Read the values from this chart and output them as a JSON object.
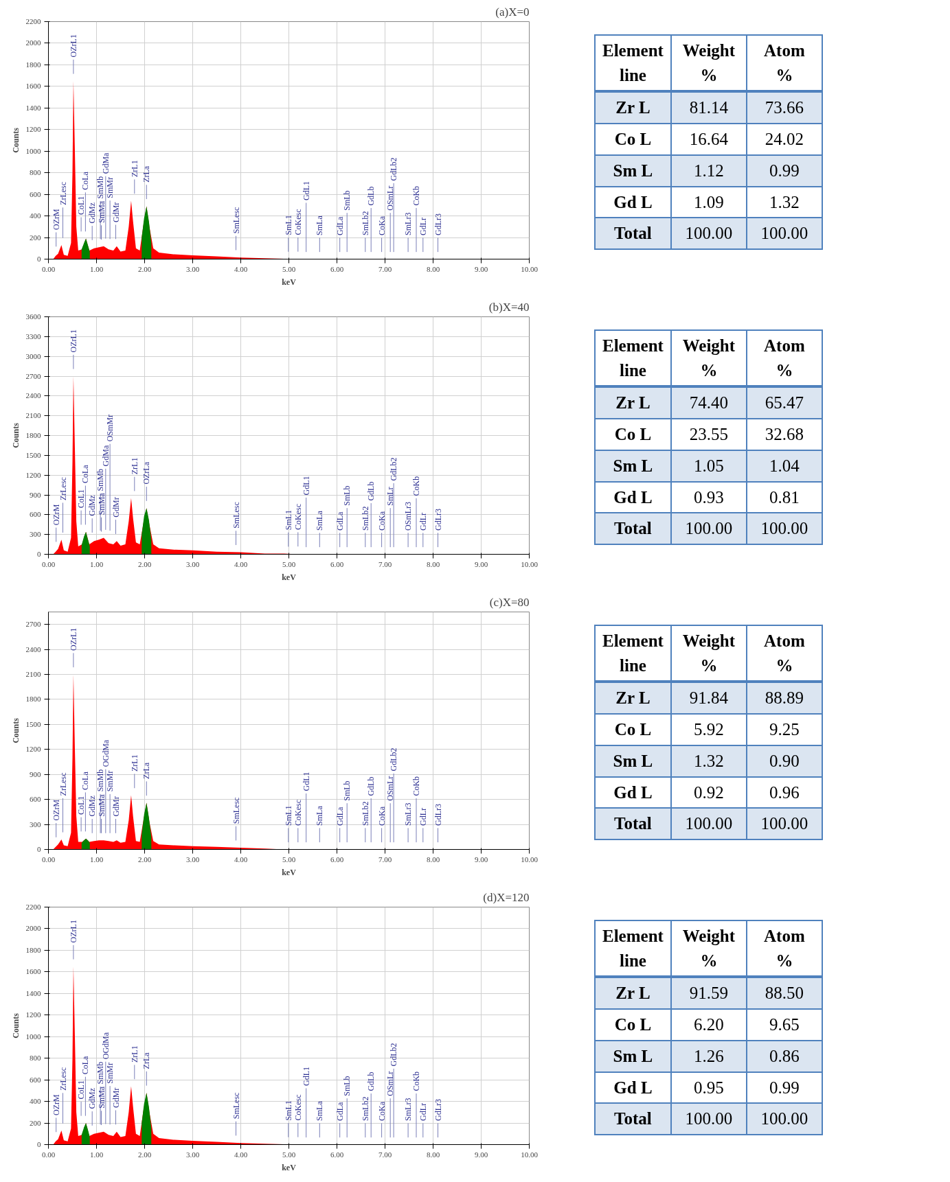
{
  "chart_data": [
    {
      "type": "area",
      "title": "(a)X=0",
      "xlabel": "keV",
      "ylabel": "Counts",
      "xlim": [
        0,
        10
      ],
      "ylim": [
        0,
        2200
      ],
      "grid": true,
      "xticks": [
        {
          "value": 0,
          "label": "0.00"
        },
        {
          "value": 1,
          "label": "1.00"
        },
        {
          "value": 2,
          "label": "2.00"
        },
        {
          "value": 3,
          "label": "3.00"
        },
        {
          "value": 4,
          "label": "4.00"
        },
        {
          "value": 5,
          "label": "5.00"
        },
        {
          "value": 6,
          "label": "6.00"
        },
        {
          "value": 7,
          "label": "7.00"
        },
        {
          "value": 8,
          "label": "8.00"
        },
        {
          "value": 9,
          "label": "9.00"
        },
        {
          "value": 10,
          "label": "10.00"
        }
      ],
      "yticks": [
        0,
        200,
        400,
        600,
        800,
        1000,
        1200,
        1400,
        1600,
        1800,
        2000,
        2200
      ],
      "series": [
        {
          "color": "#ff0000",
          "x": [
            0.1,
            0.15,
            0.2,
            0.27,
            0.32,
            0.4,
            0.47,
            0.5,
            0.52,
            0.55,
            0.58,
            0.62,
            0.7,
            0.78,
            0.85,
            0.95,
            1.05,
            1.15,
            1.25,
            1.35,
            1.42,
            1.5,
            1.6,
            1.67,
            1.72,
            1.76,
            1.82,
            1.9,
            1.97,
            2.04,
            2.1,
            2.18,
            2.3,
            2.6,
            3.0,
            3.5,
            4.0,
            4.5,
            4.9,
            5.2,
            10
          ],
          "values": [
            0,
            30,
            50,
            130,
            40,
            30,
            150,
            800,
            1650,
            1000,
            300,
            80,
            90,
            190,
            80,
            100,
            110,
            120,
            90,
            80,
            120,
            70,
            80,
            300,
            540,
            350,
            100,
            80,
            300,
            490,
            300,
            100,
            60,
            45,
            35,
            25,
            15,
            8,
            3,
            0,
            0
          ]
        },
        {
          "color": "#008000",
          "x": [
            0.69,
            0.74,
            0.78,
            0.82,
            0.86,
            1.4,
            1.94,
            1.99,
            2.04,
            2.09,
            2.14
          ],
          "values": [
            90,
            150,
            190,
            130,
            70,
            null,
            200,
            380,
            490,
            350,
            150
          ]
        }
      ],
      "ref_lines": [
        {
          "axis": "x",
          "label": "OZrM",
          "value": 0.16
        },
        {
          "axis": "x",
          "label": "ZrLesc",
          "value": 0.3
        },
        {
          "axis": "x",
          "label": "OZrL1",
          "value": 0.52
        },
        {
          "axis": "x",
          "label": "CoL1",
          "value": 0.68
        },
        {
          "axis": "x",
          "label": "CoLa",
          "value": 0.77
        },
        {
          "axis": "x",
          "label": "GdMz",
          "value": 0.91
        },
        {
          "axis": "x",
          "label": "SmMb",
          "value": 1.08
        },
        {
          "axis": "x",
          "label": "SmMa",
          "value": 1.1
        },
        {
          "axis": "x",
          "label": "GdMa",
          "value": 1.19
        },
        {
          "axis": "x",
          "label": "SmMr",
          "value": 1.28
        },
        {
          "axis": "x",
          "label": "GdMr",
          "value": 1.4
        },
        {
          "axis": "x",
          "label": "ZrL1",
          "value": 1.79
        },
        {
          "axis": "x",
          "label": "ZrLa",
          "value": 2.04
        },
        {
          "axis": "x",
          "label": "SmLesc",
          "value": 3.9
        },
        {
          "axis": "x",
          "label": "SmL1",
          "value": 4.99
        },
        {
          "axis": "x",
          "label": "CoKesc",
          "value": 5.19
        },
        {
          "axis": "x",
          "label": "GdL1",
          "value": 5.36
        },
        {
          "axis": "x",
          "label": "SmLa",
          "value": 5.64
        },
        {
          "axis": "x",
          "label": "GdLa",
          "value": 6.06
        },
        {
          "axis": "x",
          "label": "SmLb",
          "value": 6.21
        },
        {
          "axis": "x",
          "label": "SmLb2",
          "value": 6.59
        },
        {
          "axis": "x",
          "label": "GdLb",
          "value": 6.71
        },
        {
          "axis": "x",
          "label": "CoKa",
          "value": 6.93
        },
        {
          "axis": "x",
          "label": "OSmLr",
          "value": 7.11
        },
        {
          "axis": "x",
          "label": "GdLb2",
          "value": 7.18
        },
        {
          "axis": "x",
          "label": "SmLr3",
          "value": 7.48
        },
        {
          "axis": "x",
          "label": "CoKb",
          "value": 7.65
        },
        {
          "axis": "x",
          "label": "GdLr",
          "value": 7.79
        },
        {
          "axis": "x",
          "label": "GdLr3",
          "value": 8.1
        }
      ]
    },
    {
      "type": "other",
      "categories": [
        "Element line",
        "Weight %",
        "Atom %"
      ],
      "y_categories": [
        "Zr L",
        "Co L",
        "Sm L",
        "Gd L",
        "Total"
      ],
      "cell_labels": [
        [
          "81.14",
          "73.66"
        ],
        [
          "16.64",
          "24.02"
        ],
        [
          "1.12",
          "0.99"
        ],
        [
          "1.09",
          "1.32"
        ],
        [
          "100.00",
          "100.00"
        ]
      ]
    },
    {
      "type": "area",
      "title": "(b)X=40",
      "xlabel": "keV",
      "ylabel": "Counts",
      "xlim": [
        0,
        10
      ],
      "ylim": [
        0,
        3600
      ],
      "grid": true,
      "xticks": [
        {
          "value": 0,
          "label": "0.00"
        },
        {
          "value": 1,
          "label": "1.00"
        },
        {
          "value": 2,
          "label": "2.00"
        },
        {
          "value": 3,
          "label": "3.00"
        },
        {
          "value": 4,
          "label": "4.00"
        },
        {
          "value": 5,
          "label": "5.00"
        },
        {
          "value": 6,
          "label": "6.00"
        },
        {
          "value": 7,
          "label": "7.00"
        },
        {
          "value": 8,
          "label": "8.00"
        },
        {
          "value": 9,
          "label": "9.00"
        },
        {
          "value": 10,
          "label": "10.00"
        }
      ],
      "yticks": [
        0,
        300,
        600,
        900,
        1200,
        1500,
        1800,
        2100,
        2400,
        2700,
        3000,
        3300,
        3600
      ],
      "series": [
        {
          "color": "#ff0000",
          "x": [
            0.1,
            0.15,
            0.2,
            0.27,
            0.32,
            0.4,
            0.47,
            0.5,
            0.52,
            0.55,
            0.58,
            0.62,
            0.7,
            0.78,
            0.85,
            0.95,
            1.05,
            1.15,
            1.25,
            1.35,
            1.42,
            1.5,
            1.6,
            1.67,
            1.72,
            1.76,
            1.82,
            1.9,
            1.97,
            2.04,
            2.1,
            2.18,
            2.3,
            2.6,
            3.0,
            3.5,
            4.0,
            4.5,
            4.9,
            5.2,
            10
          ],
          "values": [
            0,
            40,
            80,
            220,
            60,
            40,
            250,
            1400,
            2700,
            1600,
            500,
            120,
            150,
            340,
            150,
            200,
            220,
            250,
            170,
            150,
            200,
            130,
            150,
            500,
            850,
            550,
            180,
            150,
            450,
            700,
            450,
            150,
            90,
            70,
            60,
            40,
            30,
            10,
            10,
            0,
            0
          ]
        },
        {
          "color": "#008000",
          "x": [
            0.69,
            0.74,
            0.78,
            0.82,
            0.86,
            1.4,
            1.94,
            1.99,
            2.04,
            2.09,
            2.14
          ],
          "values": [
            140,
            270,
            340,
            230,
            120,
            null,
            300,
            580,
            700,
            520,
            220
          ]
        }
      ],
      "ref_lines": [
        {
          "axis": "x",
          "label": "OZrM",
          "value": 0.16
        },
        {
          "axis": "x",
          "label": "ZrLesc",
          "value": 0.3
        },
        {
          "axis": "x",
          "label": "OZrL1",
          "value": 0.52
        },
        {
          "axis": "x",
          "label": "CoL1",
          "value": 0.68
        },
        {
          "axis": "x",
          "label": "CoLa",
          "value": 0.77
        },
        {
          "axis": "x",
          "label": "GdMz",
          "value": 0.91
        },
        {
          "axis": "x",
          "label": "SmMb",
          "value": 1.08
        },
        {
          "axis": "x",
          "label": "SmMa",
          "value": 1.1
        },
        {
          "axis": "x",
          "label": "GdMa",
          "value": 1.19
        },
        {
          "axis": "x",
          "label": "OSmMr",
          "value": 1.28
        },
        {
          "axis": "x",
          "label": "GdMr",
          "value": 1.4
        },
        {
          "axis": "x",
          "label": "ZrL1",
          "value": 1.79
        },
        {
          "axis": "x",
          "label": "OZrLa",
          "value": 2.04
        },
        {
          "axis": "x",
          "label": "SmLesc",
          "value": 3.9
        },
        {
          "axis": "x",
          "label": "SmL1",
          "value": 4.99
        },
        {
          "axis": "x",
          "label": "CoKesc",
          "value": 5.19
        },
        {
          "axis": "x",
          "label": "GdL1",
          "value": 5.36
        },
        {
          "axis": "x",
          "label": "SmLa",
          "value": 5.64
        },
        {
          "axis": "x",
          "label": "GdLa",
          "value": 6.06
        },
        {
          "axis": "x",
          "label": "SmLb",
          "value": 6.21
        },
        {
          "axis": "x",
          "label": "SmLb2",
          "value": 6.59
        },
        {
          "axis": "x",
          "label": "GdLb",
          "value": 6.71
        },
        {
          "axis": "x",
          "label": "CoKa",
          "value": 6.93
        },
        {
          "axis": "x",
          "label": "SmLr",
          "value": 7.11
        },
        {
          "axis": "x",
          "label": "GdLb2",
          "value": 7.18
        },
        {
          "axis": "x",
          "label": "OSmLr3",
          "value": 7.48
        },
        {
          "axis": "x",
          "label": "CoKb",
          "value": 7.65
        },
        {
          "axis": "x",
          "label": "GdLr",
          "value": 7.79
        },
        {
          "axis": "x",
          "label": "GdLr3",
          "value": 8.1
        }
      ]
    },
    {
      "type": "other",
      "categories": [
        "Element line",
        "Weight %",
        "Atom %"
      ],
      "y_categories": [
        "Zr L",
        "Co L",
        "Sm L",
        "Gd L",
        "Total"
      ],
      "cell_labels": [
        [
          "74.40",
          "65.47"
        ],
        [
          "23.55",
          "32.68"
        ],
        [
          "1.05",
          "1.04"
        ],
        [
          "0.93",
          "0.81"
        ],
        [
          "100.00",
          "100.00"
        ]
      ]
    },
    {
      "type": "area",
      "title": "(c)X=80",
      "xlabel": "keV",
      "ylabel": "Counts",
      "xlim": [
        0,
        10
      ],
      "ylim": [
        0,
        2850
      ],
      "grid": true,
      "xticks": [
        {
          "value": 0,
          "label": "0.00"
        },
        {
          "value": 1,
          "label": "1.00"
        },
        {
          "value": 2,
          "label": "2.00"
        },
        {
          "value": 3,
          "label": "3.00"
        },
        {
          "value": 4,
          "label": "4.00"
        },
        {
          "value": 5,
          "label": "5.00"
        },
        {
          "value": 6,
          "label": "6.00"
        },
        {
          "value": 7,
          "label": "7.00"
        },
        {
          "value": 8,
          "label": "8.00"
        },
        {
          "value": 9,
          "label": "9.00"
        },
        {
          "value": 10,
          "label": "10.00"
        }
      ],
      "yticks": [
        0,
        300,
        600,
        900,
        1200,
        1500,
        1800,
        2100,
        2400,
        2700
      ],
      "series": [
        {
          "color": "#ff0000",
          "x": [
            0.1,
            0.15,
            0.2,
            0.27,
            0.32,
            0.4,
            0.47,
            0.5,
            0.52,
            0.55,
            0.58,
            0.62,
            0.7,
            0.78,
            0.85,
            0.95,
            1.05,
            1.15,
            1.25,
            1.35,
            1.42,
            1.5,
            1.6,
            1.67,
            1.72,
            1.76,
            1.82,
            1.9,
            1.97,
            2.04,
            2.1,
            2.18,
            2.3,
            2.6,
            3.0,
            3.5,
            4.0,
            4.5,
            4.9,
            5.2,
            10
          ],
          "values": [
            0,
            30,
            60,
            120,
            50,
            40,
            200,
            1100,
            2100,
            1200,
            400,
            90,
            90,
            130,
            90,
            100,
            110,
            110,
            100,
            90,
            110,
            80,
            90,
            350,
            650,
            400,
            100,
            90,
            330,
            560,
            330,
            100,
            60,
            50,
            40,
            30,
            20,
            10,
            0,
            0,
            0
          ]
        },
        {
          "color": "#008000",
          "x": [
            0.69,
            0.74,
            0.78,
            0.82,
            0.86,
            1.4,
            1.94,
            1.99,
            2.04,
            2.09,
            2.14
          ],
          "values": [
            80,
            110,
            130,
            110,
            80,
            null,
            180,
            420,
            560,
            380,
            150
          ]
        }
      ],
      "ref_lines": [
        {
          "axis": "x",
          "label": "OZrM",
          "value": 0.16
        },
        {
          "axis": "x",
          "label": "ZrLesc",
          "value": 0.3
        },
        {
          "axis": "x",
          "label": "OZrL1",
          "value": 0.52
        },
        {
          "axis": "x",
          "label": "CoL1",
          "value": 0.68
        },
        {
          "axis": "x",
          "label": "CoLa",
          "value": 0.77
        },
        {
          "axis": "x",
          "label": "GdMz",
          "value": 0.91
        },
        {
          "axis": "x",
          "label": "SmMb",
          "value": 1.08
        },
        {
          "axis": "x",
          "label": "SmMa",
          "value": 1.1
        },
        {
          "axis": "x",
          "label": "OGdMa",
          "value": 1.19
        },
        {
          "axis": "x",
          "label": "SmMr",
          "value": 1.28
        },
        {
          "axis": "x",
          "label": "GdMr",
          "value": 1.4
        },
        {
          "axis": "x",
          "label": "ZrL1",
          "value": 1.79
        },
        {
          "axis": "x",
          "label": "ZrLa",
          "value": 2.04
        },
        {
          "axis": "x",
          "label": "SmLesc",
          "value": 3.9
        },
        {
          "axis": "x",
          "label": "SmL1",
          "value": 4.99
        },
        {
          "axis": "x",
          "label": "CoKesc",
          "value": 5.19
        },
        {
          "axis": "x",
          "label": "GdL1",
          "value": 5.36
        },
        {
          "axis": "x",
          "label": "SmLa",
          "value": 5.64
        },
        {
          "axis": "x",
          "label": "GdLa",
          "value": 6.06
        },
        {
          "axis": "x",
          "label": "SmLb",
          "value": 6.21
        },
        {
          "axis": "x",
          "label": "SmLb2",
          "value": 6.59
        },
        {
          "axis": "x",
          "label": "GdLb",
          "value": 6.71
        },
        {
          "axis": "x",
          "label": "CoKa",
          "value": 6.93
        },
        {
          "axis": "x",
          "label": "OSmLr",
          "value": 7.11
        },
        {
          "axis": "x",
          "label": "GdLb2",
          "value": 7.18
        },
        {
          "axis": "x",
          "label": "SmLr3",
          "value": 7.48
        },
        {
          "axis": "x",
          "label": "CoKb",
          "value": 7.65
        },
        {
          "axis": "x",
          "label": "GdLr",
          "value": 7.79
        },
        {
          "axis": "x",
          "label": "GdLr3",
          "value": 8.1
        }
      ]
    },
    {
      "type": "other",
      "categories": [
        "Element line",
        "Weight %",
        "Atom %"
      ],
      "y_categories": [
        "Zr L",
        "Co L",
        "Sm L",
        "Gd L",
        "Total"
      ],
      "cell_labels": [
        [
          "91.84",
          "88.89"
        ],
        [
          "5.92",
          "9.25"
        ],
        [
          "1.32",
          "0.90"
        ],
        [
          "0.92",
          "0.96"
        ],
        [
          "100.00",
          "100.00"
        ]
      ]
    },
    {
      "type": "area",
      "title": "(d)X=120",
      "xlabel": "keV",
      "ylabel": "Counts",
      "xlim": [
        0,
        10
      ],
      "ylim": [
        0,
        2200
      ],
      "grid": true,
      "xticks": [
        {
          "value": 0,
          "label": "0.00"
        },
        {
          "value": 1,
          "label": "1.00"
        },
        {
          "value": 2,
          "label": "2.00"
        },
        {
          "value": 3,
          "label": "3.00"
        },
        {
          "value": 4,
          "label": "4.00"
        },
        {
          "value": 5,
          "label": "5.00"
        },
        {
          "value": 6,
          "label": "6.00"
        },
        {
          "value": 7,
          "label": "7.00"
        },
        {
          "value": 8,
          "label": "8.00"
        },
        {
          "value": 9,
          "label": "9.00"
        },
        {
          "value": 10,
          "label": "10.00"
        }
      ],
      "yticks": [
        0,
        200,
        400,
        600,
        800,
        1000,
        1200,
        1400,
        1600,
        1800,
        2000,
        2200
      ],
      "series": [
        {
          "color": "#ff0000",
          "x": [
            0.1,
            0.15,
            0.2,
            0.27,
            0.32,
            0.4,
            0.47,
            0.5,
            0.52,
            0.55,
            0.58,
            0.62,
            0.7,
            0.78,
            0.85,
            0.95,
            1.05,
            1.15,
            1.25,
            1.35,
            1.42,
            1.5,
            1.6,
            1.67,
            1.72,
            1.76,
            1.82,
            1.9,
            1.97,
            2.04,
            2.1,
            2.18,
            2.3,
            2.6,
            3.0,
            3.5,
            4.0,
            4.5,
            4.9,
            5.2,
            10
          ],
          "values": [
            0,
            30,
            50,
            130,
            40,
            30,
            150,
            800,
            1650,
            1000,
            300,
            80,
            90,
            200,
            80,
            100,
            110,
            120,
            90,
            80,
            120,
            70,
            80,
            300,
            540,
            350,
            100,
            80,
            300,
            480,
            300,
            100,
            60,
            45,
            35,
            25,
            15,
            8,
            3,
            0,
            0
          ]
        },
        {
          "color": "#008000",
          "x": [
            0.69,
            0.74,
            0.78,
            0.82,
            0.86,
            1.4,
            1.94,
            1.99,
            2.04,
            2.09,
            2.14
          ],
          "values": [
            90,
            160,
            200,
            140,
            70,
            null,
            200,
            380,
            480,
            350,
            150
          ]
        }
      ],
      "ref_lines": [
        {
          "axis": "x",
          "label": "OZrM",
          "value": 0.16
        },
        {
          "axis": "x",
          "label": "ZrLesc",
          "value": 0.3
        },
        {
          "axis": "x",
          "label": "OZrL1",
          "value": 0.52
        },
        {
          "axis": "x",
          "label": "CoL1",
          "value": 0.68
        },
        {
          "axis": "x",
          "label": "CoLa",
          "value": 0.77
        },
        {
          "axis": "x",
          "label": "GdMz",
          "value": 0.91
        },
        {
          "axis": "x",
          "label": "SmMb",
          "value": 1.08
        },
        {
          "axis": "x",
          "label": "SmMa",
          "value": 1.1
        },
        {
          "axis": "x",
          "label": "OGdMa",
          "value": 1.19
        },
        {
          "axis": "x",
          "label": "SmMr",
          "value": 1.28
        },
        {
          "axis": "x",
          "label": "GdMr",
          "value": 1.4
        },
        {
          "axis": "x",
          "label": "ZrL1",
          "value": 1.79
        },
        {
          "axis": "x",
          "label": "ZrLa",
          "value": 2.04
        },
        {
          "axis": "x",
          "label": "SmLesc",
          "value": 3.9
        },
        {
          "axis": "x",
          "label": "SmL1",
          "value": 4.99
        },
        {
          "axis": "x",
          "label": "CoKesc",
          "value": 5.19
        },
        {
          "axis": "x",
          "label": "GdL1",
          "value": 5.36
        },
        {
          "axis": "x",
          "label": "SmLa",
          "value": 5.64
        },
        {
          "axis": "x",
          "label": "GdLa",
          "value": 6.06
        },
        {
          "axis": "x",
          "label": "SmLb",
          "value": 6.21
        },
        {
          "axis": "x",
          "label": "SmLb2",
          "value": 6.59
        },
        {
          "axis": "x",
          "label": "GdLb",
          "value": 6.71
        },
        {
          "axis": "x",
          "label": "CoKa",
          "value": 6.93
        },
        {
          "axis": "x",
          "label": "OSmLr",
          "value": 7.11
        },
        {
          "axis": "x",
          "label": "GdLb2",
          "value": 7.18
        },
        {
          "axis": "x",
          "label": "SmLr3",
          "value": 7.48
        },
        {
          "axis": "x",
          "label": "CoKb",
          "value": 7.65
        },
        {
          "axis": "x",
          "label": "GdLr",
          "value": 7.79
        },
        {
          "axis": "x",
          "label": "GdLr3",
          "value": 8.1
        }
      ]
    },
    {
      "type": "other",
      "categories": [
        "Element line",
        "Weight %",
        "Atom %"
      ],
      "y_categories": [
        "Zr L",
        "Co L",
        "Sm L",
        "Gd L",
        "Total"
      ],
      "cell_labels": [
        [
          "91.59",
          "88.50"
        ],
        [
          "6.20",
          "9.65"
        ],
        [
          "1.26",
          "0.86"
        ],
        [
          "0.95",
          "0.99"
        ],
        [
          "100.00",
          "100.00"
        ]
      ]
    }
  ]
}
